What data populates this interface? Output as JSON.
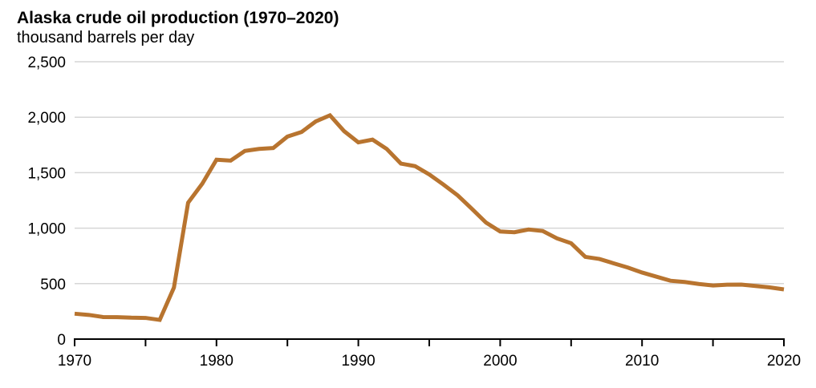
{
  "chart_data": {
    "type": "line",
    "title": "Alaska crude oil production (1970–2020)",
    "subtitle": "thousand barrels per day",
    "xlabel": "",
    "ylabel": "thousand barrels per day",
    "series_name": "Alaska crude oil production",
    "x": [
      1970,
      1971,
      1972,
      1973,
      1974,
      1975,
      1976,
      1977,
      1978,
      1979,
      1980,
      1981,
      1982,
      1983,
      1984,
      1985,
      1986,
      1987,
      1988,
      1989,
      1990,
      1991,
      1992,
      1993,
      1994,
      1995,
      1996,
      1997,
      1998,
      1999,
      2000,
      2001,
      2002,
      2003,
      2004,
      2005,
      2006,
      2007,
      2008,
      2009,
      2010,
      2011,
      2012,
      2013,
      2014,
      2015,
      2016,
      2017,
      2018,
      2019,
      2020
    ],
    "values": [
      229,
      218,
      199,
      198,
      193,
      191,
      173,
      464,
      1229,
      1401,
      1617,
      1609,
      1696,
      1714,
      1722,
      1825,
      1867,
      1962,
      2017,
      1874,
      1773,
      1798,
      1714,
      1582,
      1559,
      1484,
      1393,
      1296,
      1175,
      1050,
      970,
      963,
      988,
      974,
      908,
      864,
      741,
      722,
      683,
      645,
      600,
      563,
      526,
      515,
      497,
      483,
      490,
      491,
      479,
      466,
      448
    ],
    "xlim": [
      1970,
      2020
    ],
    "ylim": [
      0,
      2500
    ],
    "y_ticks": [
      0,
      500,
      1000,
      1500,
      2000,
      2500
    ],
    "y_tick_labels": [
      "0",
      "500",
      "1,000",
      "1,500",
      "2,000",
      "2,500"
    ],
    "x_minor_tick_step": 5,
    "x_labeled_ticks": [
      1970,
      1980,
      1990,
      2000,
      2010,
      2020
    ],
    "grid": "horizontal",
    "legend": "none",
    "colors": {
      "line": "#b8742f",
      "grid": "#d6d6d6",
      "axis": "#000000",
      "text": "#000000",
      "background": "#ffffff"
    }
  }
}
